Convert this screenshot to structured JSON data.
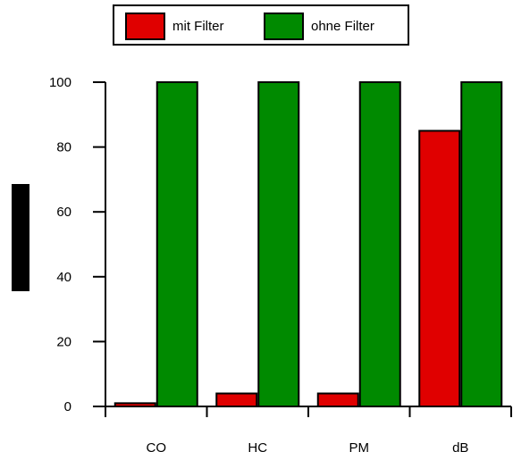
{
  "chart_data": {
    "type": "bar",
    "categories": [
      "CO",
      "HC",
      "PM",
      "dB"
    ],
    "series": [
      {
        "name": "mit Filter",
        "values": [
          1,
          4,
          4,
          85
        ],
        "color": "#e00000"
      },
      {
        "name": "ohne Filter",
        "values": [
          100,
          100,
          100,
          100
        ],
        "color": "#008a00"
      }
    ],
    "title": "",
    "xlabel": "",
    "ylabel": "",
    "ylim": [
      0,
      100
    ],
    "yticks": [
      0,
      20,
      40,
      60,
      80,
      100
    ],
    "grid": false,
    "legend_position": "top"
  }
}
